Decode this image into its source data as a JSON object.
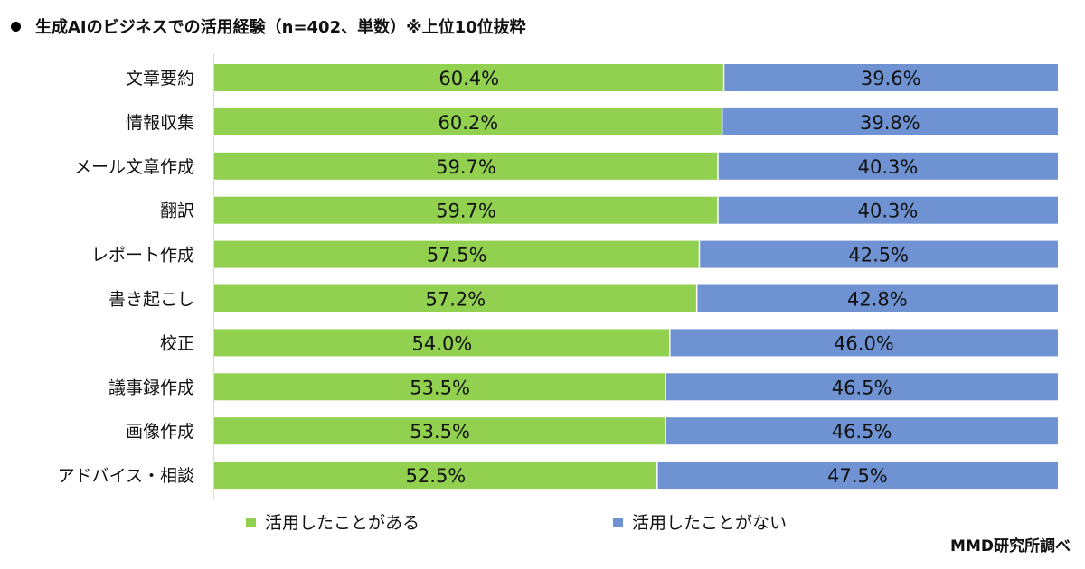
{
  "title": "生成AIのビジネスでの活用経験（n=402、単数）※上位10位抜粋",
  "source": "MMD研究所調べ",
  "colors": {
    "used": "#92d050",
    "not_used": "#6f93d2",
    "text": "#111111"
  },
  "chart_data": {
    "type": "bar",
    "orientation": "horizontal",
    "stacked": "percent",
    "categories": [
      "文章要約",
      "情報収集",
      "メール文章作成",
      "翻訳",
      "レポート作成",
      "書き起こし",
      "校正",
      "議事録作成",
      "画像作成",
      "アドバイス・相談"
    ],
    "series": [
      {
        "name": "活用したことがある",
        "values": [
          60.4,
          60.2,
          59.7,
          59.7,
          57.5,
          57.2,
          54.0,
          53.5,
          53.5,
          52.5
        ],
        "labels": [
          "60.4%",
          "60.2%",
          "59.7%",
          "59.7%",
          "57.5%",
          "57.2%",
          "54.0%",
          "53.5%",
          "53.5%",
          "52.5%"
        ]
      },
      {
        "name": "活用したことがない",
        "values": [
          39.6,
          39.8,
          40.3,
          40.3,
          42.5,
          42.8,
          46.0,
          46.5,
          46.5,
          47.5
        ],
        "labels": [
          "39.6%",
          "39.8%",
          "40.3%",
          "40.3%",
          "42.5%",
          "42.8%",
          "46.0%",
          "46.5%",
          "46.5%",
          "47.5%"
        ]
      }
    ],
    "xlim": [
      0,
      100
    ],
    "grid": false,
    "legend_position": "bottom"
  }
}
